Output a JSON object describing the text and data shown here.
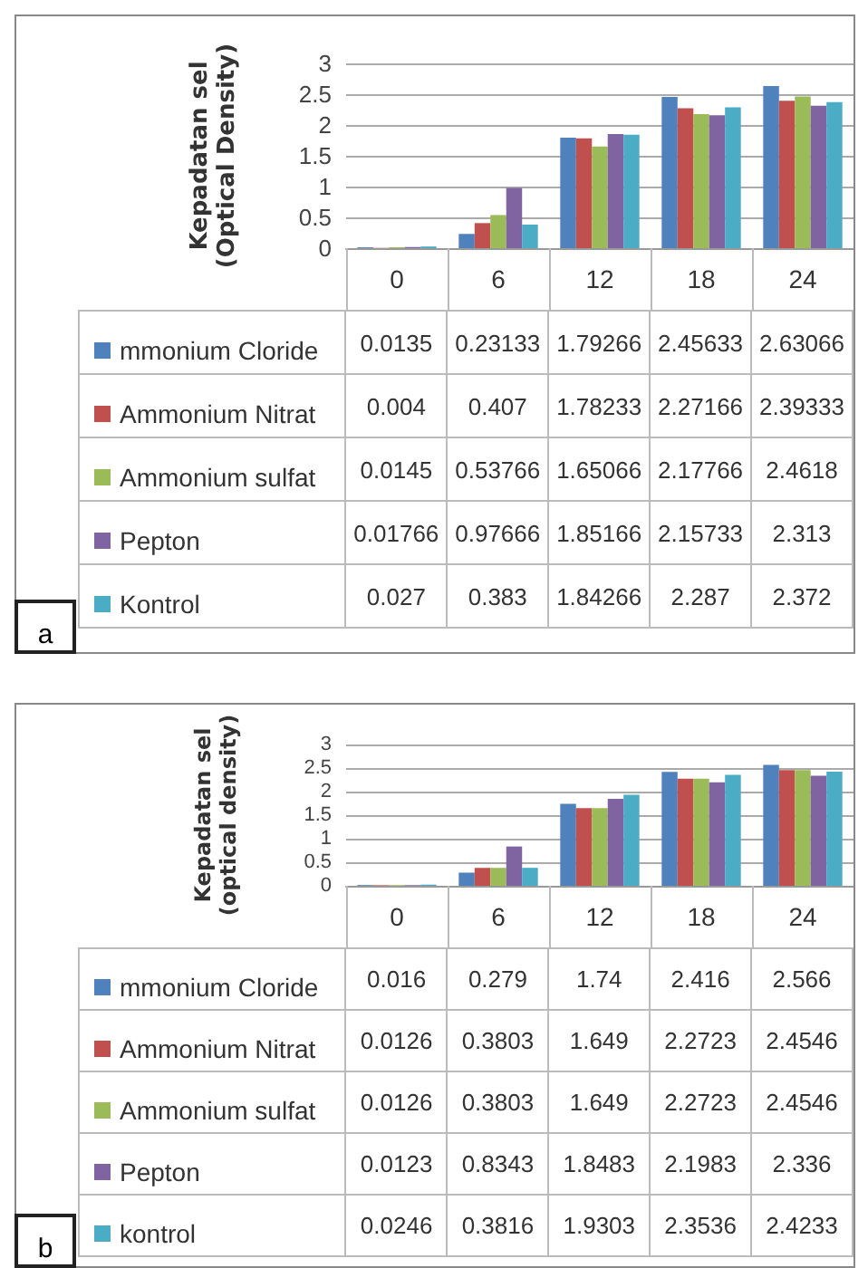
{
  "chart_data": [
    {
      "type": "bar",
      "ylabel": "Kepadatan sel\n(Optical Density)",
      "categories": [
        "0",
        "6",
        "12",
        "18",
        "24"
      ],
      "ylim": [
        0,
        3
      ],
      "yticks": [
        0,
        0.5,
        1,
        1.5,
        2,
        2.5,
        3
      ],
      "grid": "y",
      "legend": "bottom left",
      "data_labels": true,
      "annotations": [
        "a"
      ],
      "series": [
        {
          "name": "mmonium Cloride",
          "color": "#4f81bd",
          "values": [
            0.0135,
            0.23133,
            1.79266,
            2.45633,
            2.63066
          ]
        },
        {
          "name": "Ammonium Nitrat",
          "color": "#c0504d",
          "values": [
            0.004,
            0.407,
            1.78233,
            2.27166,
            2.39333
          ]
        },
        {
          "name": "Ammonium sulfat",
          "color": "#9bbb59",
          "values": [
            0.0145,
            0.53766,
            1.65066,
            2.17766,
            2.4618
          ]
        },
        {
          "name": "Pepton",
          "color": "#8064a2",
          "values": [
            0.01766,
            0.97666,
            1.85166,
            2.15733,
            2.313
          ]
        },
        {
          "name": "Kontrol",
          "color": "#4bacc6",
          "values": [
            0.027,
            0.383,
            1.84266,
            2.287,
            2.372
          ]
        }
      ]
    },
    {
      "type": "bar",
      "ylabel": "Kepadatan sel\n(optical density)",
      "categories": [
        "0",
        "6",
        "12",
        "18",
        "24"
      ],
      "ylim": [
        0,
        3
      ],
      "yticks": [
        0,
        0.5,
        1,
        1.5,
        2,
        2.5,
        3
      ],
      "grid": "y",
      "legend": "bottom left",
      "data_labels": true,
      "annotations": [
        "b"
      ],
      "series": [
        {
          "name": "mmonium Cloride",
          "color": "#4f81bd",
          "values": [
            0.016,
            0.279,
            1.74,
            2.416,
            2.566
          ]
        },
        {
          "name": "Ammonium Nitrat",
          "color": "#c0504d",
          "values": [
            0.0126,
            0.3803,
            1.649,
            2.2723,
            2.4546
          ]
        },
        {
          "name": "Ammonium sulfat",
          "color": "#9bbb59",
          "values": [
            0.0126,
            0.3803,
            1.649,
            2.2723,
            2.4546
          ]
        },
        {
          "name": "Pepton",
          "color": "#8064a2",
          "values": [
            0.0123,
            0.8343,
            1.8483,
            2.1983,
            2.336
          ]
        },
        {
          "name": "kontrol",
          "color": "#4bacc6",
          "values": [
            0.0246,
            0.3816,
            1.9303,
            2.3536,
            2.4233
          ]
        }
      ]
    }
  ]
}
